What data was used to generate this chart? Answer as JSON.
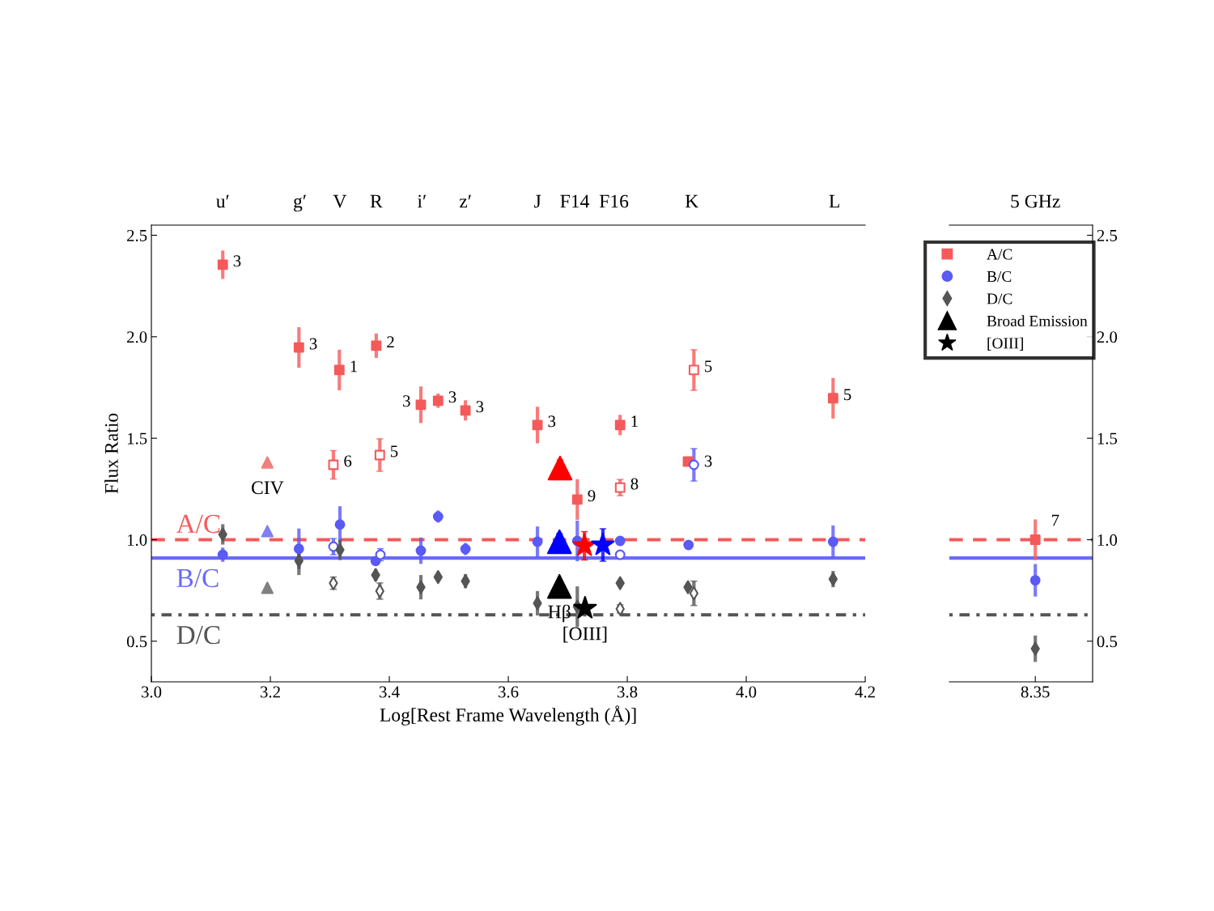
{
  "chart_data": [
    {
      "type": "scatter",
      "legend": "top right",
      "xlabel": "Log[Rest Frame Wavelength (Å)]",
      "ylabel": "Flux Ratio",
      "xlim": [
        3.0,
        4.2
      ],
      "xticks": [
        {
          "value": 3.0,
          "label": "3.0"
        },
        3.2,
        3.4,
        3.6,
        3.8,
        {
          "value": 4.0,
          "label": "4.0"
        },
        4.2
      ],
      "ylim": [
        0.3,
        2.55
      ],
      "yticks": [
        0.5,
        {
          "value": 1.0,
          "label": "1.0"
        },
        1.5,
        {
          "value": 2.0,
          "label": "2.0"
        },
        2.5
      ],
      "ref_lines": [
        {
          "axis": "y",
          "value": 1.0,
          "label": "A/C",
          "color": "#f55a5a",
          "line_style": "dashed"
        },
        {
          "axis": "y",
          "value": 0.91,
          "label": "B/C",
          "color": "#6a6af8",
          "line_style": "solid"
        },
        {
          "axis": "y",
          "value": 0.63,
          "label": "D/C",
          "color": "#555555",
          "line_style": "dotted"
        }
      ],
      "annotations": [
        "u′",
        "g′",
        "V",
        "R",
        "i′",
        "z′",
        "J",
        "F14",
        "F16",
        "K",
        "L",
        {
          "text": "CIV",
          "x": 3.195,
          "y": 1.381
        },
        {
          "text": "Hβ",
          "x": 3.686,
          "y": 0.77
        },
        {
          "text": "[OIII]",
          "x": 3.729,
          "y": 0.662
        },
        {
          "text": "3",
          "x": 3.12,
          "y": 2.355
        },
        {
          "text": "3",
          "x": 3.248,
          "y": 1.947
        },
        {
          "text": "1",
          "x": 3.316,
          "y": 1.836
        },
        {
          "text": "2",
          "x": 3.378,
          "y": 1.956
        },
        {
          "text": "3",
          "x": 3.453,
          "y": 1.665
        },
        {
          "text": "3",
          "x": 3.482,
          "y": 1.685
        },
        {
          "text": "3",
          "x": 3.528,
          "y": 1.637
        },
        {
          "text": "3",
          "x": 3.649,
          "y": 1.565
        },
        {
          "text": "9",
          "x": 3.716,
          "y": 1.198
        },
        {
          "text": "1",
          "x": 3.788,
          "y": 1.565
        },
        {
          "text": "5",
          "x": 4.146,
          "y": 1.697
        },
        {
          "text": "6",
          "x": 3.306,
          "y": 1.369
        },
        {
          "text": "5",
          "x": 3.384,
          "y": 1.417
        },
        {
          "text": "8",
          "x": 3.788,
          "y": 1.257
        },
        {
          "text": "5",
          "x": 3.912,
          "y": 1.836
        },
        {
          "text": "3",
          "x": 3.912,
          "y": 1.369
        }
      ],
      "series": [
        {
          "name": "A/C",
          "color": "#f55a5a",
          "marker": "square",
          "x": [
            3.12,
            3.248,
            3.316,
            3.378,
            3.453,
            3.482,
            3.528,
            3.649,
            3.716,
            3.788,
            3.902,
            4.146
          ],
          "values": [
            2.355,
            1.947,
            1.836,
            1.956,
            1.665,
            1.685,
            1.637,
            1.565,
            1.198,
            1.565,
            1.385,
            1.697
          ],
          "errors": [
            0.07,
            0.1,
            0.1,
            0.06,
            0.09,
            0.035,
            0.05,
            0.09,
            0.1,
            0.05,
            0.02,
            0.1
          ]
        },
        {
          "color": "#f55a5a",
          "colors": [
            "#ffffff",
            "#ffffff",
            "#ffffff",
            "#ffffff"
          ],
          "marker": "square",
          "x": [
            3.306,
            3.384,
            3.788,
            3.912
          ],
          "values": [
            1.369,
            1.417,
            1.257,
            1.836
          ],
          "errors": [
            0.07,
            0.08,
            0.04,
            0.1
          ]
        },
        {
          "name": "B/C",
          "color": "#5a5af5",
          "marker": "circle",
          "x": [
            3.12,
            3.248,
            3.317,
            3.377,
            3.453,
            3.482,
            3.528,
            3.649,
            3.716,
            3.788,
            3.903,
            4.146
          ],
          "values": [
            0.926,
            0.955,
            1.075,
            0.895,
            0.946,
            1.114,
            0.954,
            0.99,
            0.994,
            0.994,
            0.974,
            0.99
          ],
          "errors": [
            0.035,
            0.1,
            0.09,
            0.02,
            0.065,
            0.03,
            0.03,
            0.075,
            0.1,
            0.02,
            0.02,
            0.08
          ]
        },
        {
          "color": "#5a5af5",
          "colors": [
            "#ffffff",
            "#ffffff",
            "#ffffff",
            "#ffffff"
          ],
          "marker": "circle",
          "x": [
            3.306,
            3.385,
            3.788,
            3.912
          ],
          "values": [
            0.966,
            0.926,
            0.926,
            1.369
          ],
          "errors": [
            0.04,
            0.03,
            null,
            0.08
          ]
        },
        {
          "name": "D/C",
          "color": "#555555",
          "marker": "diamond",
          "x": [
            3.12,
            3.248,
            3.317,
            3.377,
            3.453,
            3.482,
            3.528,
            3.649,
            3.716,
            3.788,
            3.902,
            4.146
          ],
          "values": [
            1.026,
            0.896,
            0.95,
            0.826,
            0.766,
            0.816,
            0.796,
            0.687,
            0.67,
            0.786,
            0.766,
            0.806
          ],
          "errors": [
            0.05,
            0.07,
            0.05,
            0.03,
            0.06,
            0.025,
            0.035,
            0.06,
            0.1,
            0.02,
            0.02,
            0.04
          ]
        },
        {
          "color": "#555555",
          "colors": [
            "#ffffff",
            "#ffffff",
            "#ffffff",
            "#ffffff"
          ],
          "marker": "diamond",
          "x": [
            3.306,
            3.384,
            3.788,
            3.912
          ],
          "values": [
            0.786,
            0.747,
            0.659,
            0.736
          ],
          "errors": [
            0.03,
            0.04,
            0.02,
            0.06
          ]
        },
        {
          "marker": "triangle",
          "x": [
            3.195,
            3.195,
            3.195
          ],
          "values": [
            1.381,
            1.042,
            0.763
          ],
          "colors": [
            "#f08080",
            "#8080f0",
            "#808080"
          ]
        },
        {
          "name": "Broad Emission",
          "color": "#000000",
          "marker": "triangle",
          "x": [
            3.687,
            3.686,
            3.686
          ],
          "values": [
            1.353,
            0.99,
            0.77
          ],
          "errors": [
            0.04,
            0.04,
            null
          ],
          "colors": [
            "#ff0000",
            "#0000ff",
            "#000000"
          ]
        },
        {
          "name": "[OIII]",
          "color": "#000000",
          "marker": "star",
          "x": [
            3.728,
            3.759,
            3.729
          ],
          "values": [
            0.97,
            0.974,
            0.662
          ],
          "errors": [
            0.07,
            0.08,
            null
          ],
          "colors": [
            "#ff0000",
            "#0000ff",
            "#000000"
          ]
        }
      ]
    },
    {
      "type": "scatter",
      "categories": [
        "8.35"
      ],
      "y2lim": [
        0.3,
        2.55
      ],
      "y2ticks": [
        0.5,
        {
          "value": 1.0,
          "label": "1.0"
        },
        1.5,
        {
          "value": 2.0,
          "label": "2.0"
        },
        2.5
      ],
      "ref_lines": [
        {
          "axis": "y2",
          "value": 1.0,
          "color": "#f55a5a",
          "line_style": "dashed"
        },
        {
          "axis": "y2",
          "value": 0.91,
          "color": "#6a6af8",
          "line_style": "solid"
        },
        {
          "axis": "y2",
          "value": 0.63,
          "color": "#555555",
          "line_style": "dotted"
        }
      ],
      "annotations": [
        "5 GHz",
        "7"
      ],
      "series": [
        {
          "color": "#f55a5a",
          "marker": "square",
          "axis": "y2",
          "values": [
            1.0
          ],
          "errors": [
            0.1
          ]
        },
        {
          "color": "#5a5af5",
          "marker": "circle",
          "axis": "y2",
          "values": [
            0.8
          ],
          "errors": [
            0.08
          ]
        },
        {
          "color": "#555555",
          "marker": "diamond",
          "axis": "y2",
          "values": [
            0.463
          ],
          "errors": [
            0.065
          ]
        }
      ]
    }
  ]
}
